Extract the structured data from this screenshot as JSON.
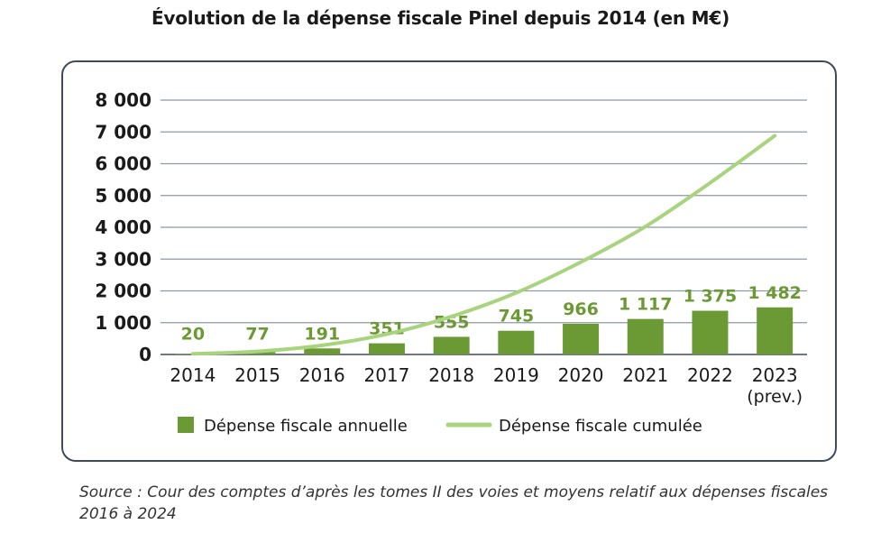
{
  "title": "Évolution de la dépense fiscale Pinel depuis 2014 (en M€)",
  "source": "Source : Cour des comptes d’après les tomes II des voies et moyens relatif aux dépenses fiscales 2016 à 2024",
  "chart_data": {
    "type": "bar",
    "title": "Évolution de la dépense fiscale Pinel depuis 2014 (en M€)",
    "categories": [
      "2014",
      "2015",
      "2016",
      "2017",
      "2018",
      "2019",
      "2020",
      "2021",
      "2022",
      "2023"
    ],
    "category_sublabels": [
      "",
      "",
      "",
      "",
      "",
      "",
      "",
      "",
      "",
      "(prev.)"
    ],
    "yticks": [
      "0",
      "1 000",
      "2 000",
      "3 000",
      "4 000",
      "5 000",
      "6 000",
      "7 000",
      "8 000"
    ],
    "ylim": [
      0,
      8000
    ],
    "grid": true,
    "legend_position": "bottom",
    "series": [
      {
        "name": "Dépense fiscale annuelle",
        "type": "bar",
        "color": "#6b9a35",
        "values": [
          20,
          77,
          191,
          351,
          555,
          745,
          966,
          1117,
          1375,
          1482
        ],
        "labels": [
          "20",
          "77",
          "191",
          "351",
          "555",
          "745",
          "966",
          "1 117",
          "1 375",
          "1 482"
        ]
      },
      {
        "name": "Dépense fiscale cumulée",
        "type": "line",
        "color": "#a9d47e",
        "values": [
          20,
          97,
          288,
          639,
          1194,
          1939,
          2905,
          4022,
          5397,
          6879
        ]
      }
    ]
  }
}
